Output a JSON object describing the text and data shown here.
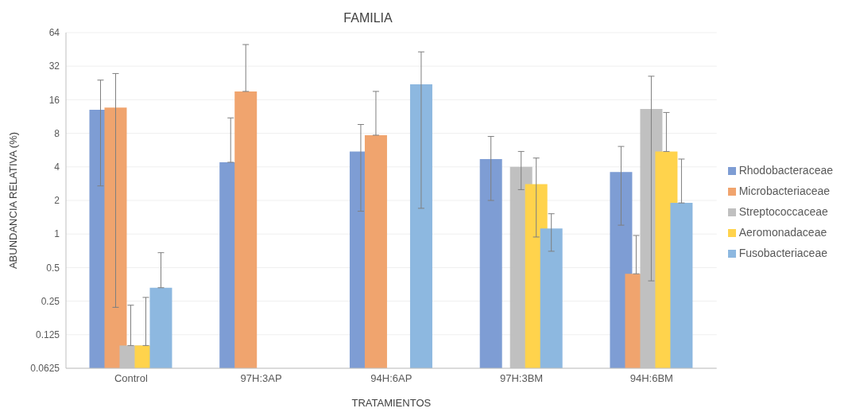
{
  "chart_data": {
    "type": "bar",
    "title": "FAMILIA",
    "xlabel": "TRATAMIENTOS",
    "ylabel": "ABUNDANCIA RELATIVA (%)",
    "categories": [
      "Control",
      "97H:3AP",
      "94H:6AP",
      "97H:3BM",
      "94H:6BM"
    ],
    "series": [
      {
        "name": "Rhodobacteraceae",
        "color": "#7e9dd4",
        "values": [
          13,
          4.4,
          5.5,
          4.7,
          3.6
        ],
        "errors": [
          [
            2.7,
            24
          ],
          [
            4.4,
            11
          ],
          [
            1.6,
            9.6
          ],
          [
            2,
            7.5
          ],
          [
            1.2,
            6.1
          ]
        ]
      },
      {
        "name": "Microbacteriaceae",
        "color": "#f0a46e",
        "values": [
          13.6,
          19,
          7.7,
          null,
          0.44
        ],
        "errors": [
          [
            0.22,
            27.5
          ],
          [
            19,
            50
          ],
          [
            7.7,
            19
          ],
          null,
          [
            0.44,
            0.97
          ]
        ]
      },
      {
        "name": "Streptococcaceae",
        "color": "#c0c0c0",
        "values": [
          0.1,
          null,
          null,
          4,
          13.2
        ],
        "errors": [
          [
            0.1,
            0.23
          ],
          null,
          null,
          [
            2.5,
            5.5
          ],
          [
            0.38,
            26
          ]
        ]
      },
      {
        "name": "Aeromonadaceae",
        "color": "#ffd34c",
        "values": [
          0.1,
          null,
          null,
          2.8,
          5.5
        ],
        "errors": [
          [
            0.1,
            0.27
          ],
          null,
          null,
          [
            0.94,
            4.8
          ],
          [
            5.5,
            12.3
          ]
        ]
      },
      {
        "name": "Fusobacteriaceae",
        "color": "#8db8e0",
        "values": [
          0.33,
          null,
          22,
          1.12,
          1.9
        ],
        "errors": [
          [
            0.33,
            0.68
          ],
          null,
          [
            1.7,
            43
          ],
          [
            0.7,
            1.52
          ],
          [
            1.9,
            4.7
          ]
        ]
      }
    ],
    "log": true,
    "ylim": [
      0.0625,
      64
    ],
    "yticks": [
      0.0625,
      0.125,
      0.25,
      0.5,
      1,
      2,
      4,
      8,
      16,
      32,
      64
    ],
    "grid": "y",
    "legend": "right"
  }
}
